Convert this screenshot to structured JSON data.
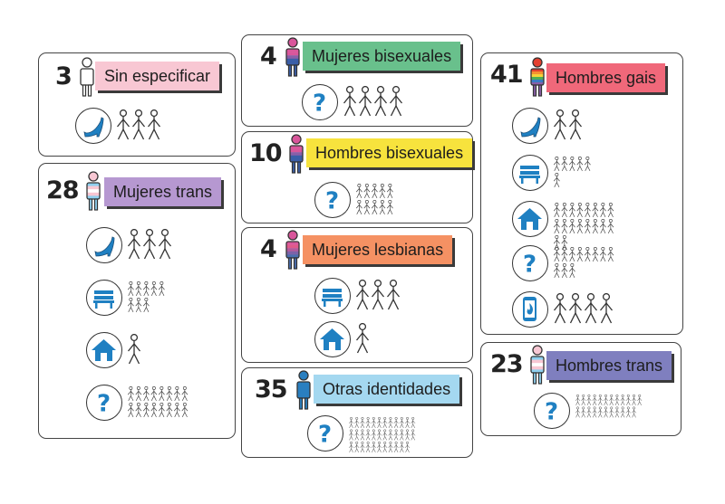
{
  "colors": {
    "pink": "#f8c7d3",
    "purple": "#b698d1",
    "green": "#69c08c",
    "yellow": "#f7e33d",
    "orange": "#f59163",
    "lightblue": "#a4d8f0",
    "red": "#f0687a",
    "navy": "#7f7fbf",
    "icon_blue": "#1f80c2"
  },
  "cards": [
    {
      "id": "sin-especificar",
      "count": "3",
      "label": "Sin especificar",
      "label_color": "#f8c7d3",
      "person": "plain",
      "rows": [
        {
          "icon": "heel-icon",
          "people": 3
        }
      ]
    },
    {
      "id": "mujeres-trans",
      "count": "28",
      "label": "Mujeres trans",
      "label_color": "#b698d1",
      "person": "trans",
      "rows": [
        {
          "icon": "heel-icon",
          "people": 3
        },
        {
          "icon": "bench-icon",
          "people": 8
        },
        {
          "icon": "house-icon",
          "people": 1
        },
        {
          "icon": "question-icon",
          "people": 16
        }
      ]
    },
    {
      "id": "mujeres-bisexuales",
      "count": "4",
      "label": "Mujeres bisexuales",
      "label_color": "#69c08c",
      "person": "bi",
      "rows": [
        {
          "icon": "question-icon",
          "people": 4
        }
      ]
    },
    {
      "id": "hombres-bisexuales",
      "count": "10",
      "label": "Hombres bisexuales",
      "label_color": "#f7e33d",
      "person": "bi",
      "rows": [
        {
          "icon": "question-icon",
          "people": 10
        }
      ]
    },
    {
      "id": "mujeres-lesbianas",
      "count": "4",
      "label": "Mujeres lesbianas",
      "label_color": "#f59163",
      "person": "lesbian",
      "rows": [
        {
          "icon": "bench-icon",
          "people": 3
        },
        {
          "icon": "house-icon",
          "people": 1
        }
      ]
    },
    {
      "id": "otras-identidades",
      "count": "35",
      "label": "Otras identidades",
      "label_color": "#a4d8f0",
      "person": "blue",
      "rows": [
        {
          "icon": "question-icon",
          "people": 35
        }
      ]
    },
    {
      "id": "hombres-gais",
      "count": "41",
      "label": "Hombres gais",
      "label_color": "#f0687a",
      "person": "rainbow",
      "rows": [
        {
          "icon": "heel-icon",
          "people": 2
        },
        {
          "icon": "bench-icon",
          "people": 6
        },
        {
          "icon": "house-icon",
          "people": 18
        },
        {
          "icon": "question-icon",
          "people": 11
        },
        {
          "icon": "phone-flame-icon",
          "people": 4
        }
      ]
    },
    {
      "id": "hombres-trans",
      "count": "23",
      "label": "Hombres trans",
      "label_color": "#7f7fbf",
      "person": "trans",
      "rows": [
        {
          "icon": "question-icon",
          "people": 23
        }
      ]
    }
  ]
}
